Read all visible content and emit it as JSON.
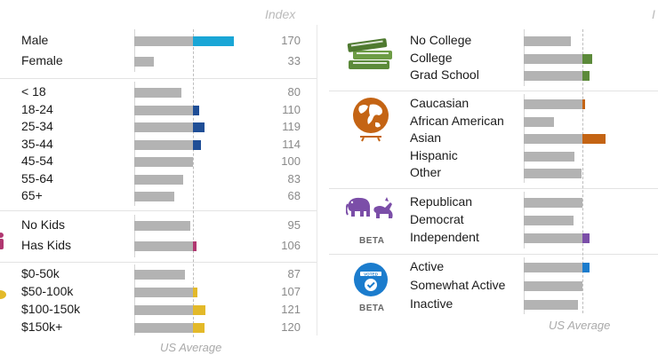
{
  "header": {
    "left_title": "Index",
    "right_title": "I"
  },
  "footer": {
    "left_label": "US Average",
    "right_label": "US Average"
  },
  "colors": {
    "bar": "#b3b3b3",
    "gender": "#1aa6d6",
    "age": "#1f4e96",
    "kids": "#b03770",
    "income": "#e3b929",
    "education": "#5c8a3a",
    "ethnicity": "#c46414",
    "party": "#7b4ea8",
    "voting": "#1b7ccd"
  },
  "icons": {
    "education": "books-icon",
    "ethnicity": "globe-icon",
    "party": "elephant-donkey-icon",
    "voting": "voted-badge-icon"
  },
  "left": {
    "gender": [
      {
        "label": "Male",
        "index": 170
      },
      {
        "label": "Female",
        "index": 33
      }
    ],
    "age": [
      {
        "label": "< 18",
        "index": 80
      },
      {
        "label": "18-24",
        "index": 110
      },
      {
        "label": "25-34",
        "index": 119
      },
      {
        "label": "35-44",
        "index": 114
      },
      {
        "label": "45-54",
        "index": 100
      },
      {
        "label": "55-64",
        "index": 83
      },
      {
        "label": "65+",
        "index": 68
      }
    ],
    "kids": [
      {
        "label": "No Kids",
        "index": 95
      },
      {
        "label": "Has Kids",
        "index": 106
      }
    ],
    "income": [
      {
        "label": "$0-50k",
        "index": 87
      },
      {
        "label": "$50-100k",
        "index": 107
      },
      {
        "label": "$100-150k",
        "index": 121
      },
      {
        "label": "$150k+",
        "index": 120
      }
    ]
  },
  "right": {
    "education": [
      {
        "label": "No College",
        "index": 80
      },
      {
        "label": "College",
        "index": 116
      },
      {
        "label": "Grad School",
        "index": 112
      }
    ],
    "ethnicity": [
      {
        "label": "Caucasian",
        "index": 105
      },
      {
        "label": "African American",
        "index": 52
      },
      {
        "label": "Asian",
        "index": 140
      },
      {
        "label": "Hispanic",
        "index": 87
      },
      {
        "label": "Other",
        "index": 98
      }
    ],
    "party": {
      "beta_label": "BETA",
      "rows": [
        {
          "label": "Republican",
          "index": 100
        },
        {
          "label": "Democrat",
          "index": 85
        },
        {
          "label": "Independent",
          "index": 112
        }
      ]
    },
    "voting": {
      "beta_label": "BETA",
      "badge_text": "VOTED",
      "rows": [
        {
          "label": "Active",
          "index": 112
        },
        {
          "label": "Somewhat Active",
          "index": 100
        },
        {
          "label": "Inactive",
          "index": 92
        }
      ]
    }
  }
}
